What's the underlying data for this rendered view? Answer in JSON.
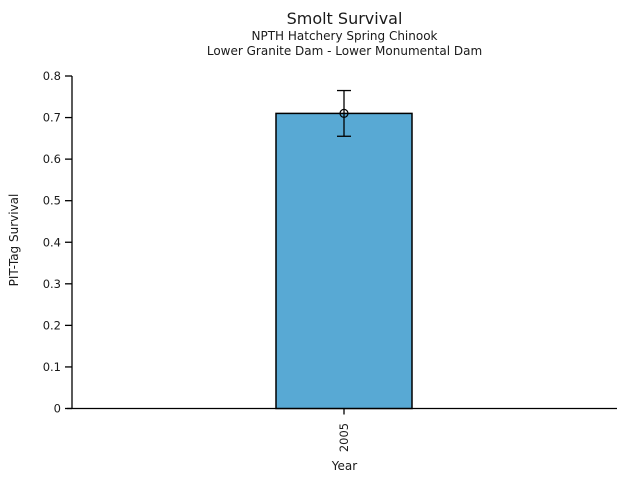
{
  "chart_data": {
    "type": "bar",
    "title": "Smolt Survival",
    "subtitle": [
      "NPTH Hatchery Spring Chinook",
      "Lower Granite Dam - Lower Monumental Dam"
    ],
    "xlabel": "Year",
    "ylabel": "PIT-Tag Survival",
    "categories": [
      "2005"
    ],
    "values": [
      0.71
    ],
    "error_low": [
      0.655
    ],
    "error_high": [
      0.765
    ],
    "ylim": [
      0,
      0.8
    ],
    "ytick_labels": [
      "0",
      "0.1",
      "0.2",
      "0.3",
      "0.4",
      "0.5",
      "0.6",
      "0.7",
      "0.8"
    ],
    "xtick_rotation_deg": 90,
    "bar_color": "#58a9d4",
    "bar_edge_color": "#000000",
    "axis_color": "#000000",
    "marker": "open-circle",
    "grid": false,
    "legend": "none"
  }
}
